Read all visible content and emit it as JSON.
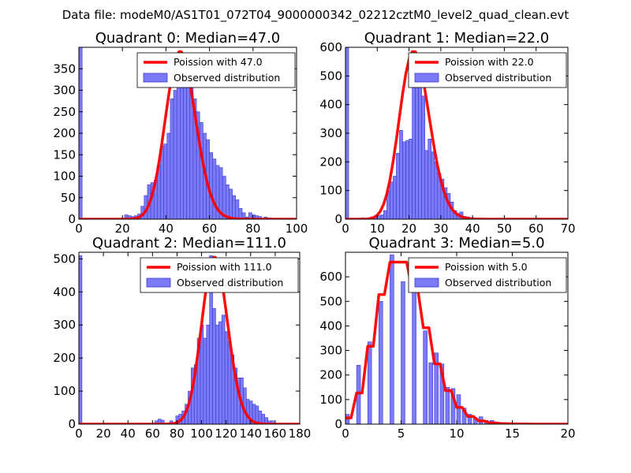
{
  "suptitle": "Data file: modeM0/AS1T01_072T04_9000000342_02212cztM0_level2_quad_clean.evt",
  "colors": {
    "bar_fill": "#7b7bf7",
    "bar_edge": "#3a3ad0",
    "line": "#ff0000",
    "axes": "#000000",
    "legend_edge": "#000000"
  },
  "chart_data": [
    {
      "type": "bar",
      "title": "Quadrant 0: Median=47.0",
      "xlim": [
        0,
        100
      ],
      "ylim": [
        0,
        400
      ],
      "xticks": [
        0,
        20,
        40,
        60,
        80,
        100
      ],
      "yticks": [
        0,
        50,
        100,
        150,
        200,
        250,
        300,
        350
      ],
      "legend": {
        "location": "upper right",
        "line_label": "Poission with 47.0",
        "bar_label": "Observed distribution"
      },
      "bin_width": 1.5,
      "bars": [
        [
          0,
          400
        ],
        [
          21,
          10
        ],
        [
          22.5,
          8
        ],
        [
          24,
          6
        ],
        [
          25.5,
          8
        ],
        [
          27,
          12
        ],
        [
          28.5,
          30
        ],
        [
          30,
          55
        ],
        [
          31.5,
          80
        ],
        [
          33,
          85
        ],
        [
          34.5,
          90
        ],
        [
          36,
          125
        ],
        [
          37.5,
          170
        ],
        [
          39,
          175
        ],
        [
          40.5,
          200
        ],
        [
          42,
          280
        ],
        [
          43.5,
          300
        ],
        [
          45,
          320
        ],
        [
          46.5,
          340
        ],
        [
          48,
          350
        ],
        [
          49.5,
          330
        ],
        [
          51,
          310
        ],
        [
          52.5,
          280
        ],
        [
          54,
          250
        ],
        [
          55.5,
          225
        ],
        [
          57,
          200
        ],
        [
          58.5,
          185
        ],
        [
          60,
          155
        ],
        [
          61.5,
          140
        ],
        [
          63,
          125
        ],
        [
          64.5,
          120
        ],
        [
          66,
          100
        ],
        [
          67.5,
          80
        ],
        [
          69,
          70
        ],
        [
          70.5,
          55
        ],
        [
          72,
          45
        ],
        [
          73.5,
          25
        ],
        [
          75,
          15
        ],
        [
          76.5,
          5
        ],
        [
          78,
          15
        ],
        [
          79.5,
          10
        ],
        [
          81,
          8
        ],
        [
          82.5,
          6
        ],
        [
          85,
          5
        ],
        [
          87,
          3
        ],
        [
          90,
          2
        ]
      ],
      "poisson_mean": 47.0,
      "poisson_peak": 390,
      "poisson_step": 1
    },
    {
      "type": "bar",
      "title": "Quadrant 1: Median=22.0",
      "xlim": [
        0,
        70
      ],
      "ylim": [
        0,
        600
      ],
      "xticks": [
        0,
        10,
        20,
        30,
        40,
        50,
        60,
        70
      ],
      "yticks": [
        0,
        100,
        200,
        300,
        400,
        500,
        600
      ],
      "legend": {
        "location": "upper right",
        "line_label": "Poission with 22.0",
        "bar_label": "Observed distribution"
      },
      "bin_width": 1,
      "bars": [
        [
          0,
          600
        ],
        [
          5,
          5
        ],
        [
          6,
          3
        ],
        [
          7,
          5
        ],
        [
          8,
          8
        ],
        [
          9,
          10
        ],
        [
          10,
          12
        ],
        [
          11,
          15
        ],
        [
          12,
          30
        ],
        [
          13,
          100
        ],
        [
          14,
          130
        ],
        [
          15,
          150
        ],
        [
          16,
          230
        ],
        [
          17,
          310
        ],
        [
          18,
          270
        ],
        [
          19,
          275
        ],
        [
          20,
          280
        ],
        [
          21,
          490
        ],
        [
          22,
          580
        ],
        [
          23,
          520
        ],
        [
          24,
          430
        ],
        [
          25,
          240
        ],
        [
          26,
          280
        ],
        [
          27,
          235
        ],
        [
          28,
          200
        ],
        [
          29,
          160
        ],
        [
          30,
          140
        ],
        [
          31,
          110
        ],
        [
          32,
          90
        ],
        [
          33,
          60
        ],
        [
          34,
          30
        ],
        [
          35,
          20
        ],
        [
          36,
          25
        ],
        [
          37,
          10
        ],
        [
          38,
          8
        ],
        [
          39,
          5
        ],
        [
          40,
          3
        ]
      ],
      "poisson_mean": 22.0,
      "poisson_peak": 585,
      "poisson_step": 1
    },
    {
      "type": "bar",
      "title": "Quadrant 2: Median=111.0",
      "xlim": [
        0,
        180
      ],
      "ylim": [
        0,
        520
      ],
      "xticks": [
        0,
        20,
        40,
        60,
        80,
        100,
        120,
        140,
        160,
        180
      ],
      "yticks": [
        0,
        100,
        200,
        300,
        400,
        500
      ],
      "legend": {
        "location": "upper right",
        "line_label": "Poission with 111.0",
        "bar_label": "Observed distribution"
      },
      "bin_width": 2.5,
      "bars": [
        [
          0,
          510
        ],
        [
          62,
          10
        ],
        [
          64.5,
          15
        ],
        [
          67,
          12
        ],
        [
          74,
          10
        ],
        [
          79,
          25
        ],
        [
          81.5,
          30
        ],
        [
          84,
          40
        ],
        [
          86.5,
          60
        ],
        [
          89,
          100
        ],
        [
          91.5,
          170
        ],
        [
          94,
          180
        ],
        [
          96.5,
          260
        ],
        [
          99,
          300
        ],
        [
          101.5,
          260
        ],
        [
          104,
          300
        ],
        [
          106.5,
          510
        ],
        [
          109,
          350
        ],
        [
          111.5,
          300
        ],
        [
          114,
          310
        ],
        [
          116.5,
          330
        ],
        [
          119,
          280
        ],
        [
          121.5,
          250
        ],
        [
          124,
          210
        ],
        [
          126.5,
          170
        ],
        [
          129,
          140
        ],
        [
          131.5,
          140
        ],
        [
          134,
          110
        ],
        [
          136.5,
          75
        ],
        [
          139,
          70
        ],
        [
          141.5,
          60
        ],
        [
          144,
          55
        ],
        [
          146.5,
          40
        ],
        [
          149,
          30
        ],
        [
          151.5,
          20
        ],
        [
          154,
          10
        ],
        [
          156.5,
          10
        ]
      ],
      "poisson_mean": 111.0,
      "poisson_peak": 505,
      "poisson_step": 1
    },
    {
      "type": "bar",
      "title": "Quadrant 3: Median=5.0",
      "xlim": [
        0,
        20
      ],
      "ylim": [
        0,
        700
      ],
      "xticks": [
        0,
        5,
        10,
        15,
        20
      ],
      "yticks": [
        0,
        100,
        200,
        300,
        400,
        500,
        600
      ],
      "legend": {
        "location": "upper right",
        "line_label": "Poission with 5.0",
        "bar_label": "Observed distribution"
      },
      "bin_width": 0.35,
      "bars": [
        [
          0,
          40
        ],
        [
          1,
          240
        ],
        [
          2,
          335
        ],
        [
          3,
          500
        ],
        [
          4,
          690
        ],
        [
          5,
          580
        ],
        [
          6,
          630
        ],
        [
          7,
          380
        ],
        [
          7.5,
          250
        ],
        [
          8,
          290
        ],
        [
          8.5,
          245
        ],
        [
          9,
          150
        ],
        [
          9.5,
          145
        ],
        [
          10,
          120
        ],
        [
          10.5,
          65
        ],
        [
          11,
          40
        ],
        [
          11.5,
          25
        ],
        [
          12,
          30
        ],
        [
          12.5,
          15
        ],
        [
          13,
          15
        ],
        [
          13.5,
          5
        ],
        [
          14,
          2
        ]
      ],
      "poisson_mean": 5.0,
      "poisson_peak": 660,
      "poisson_step": 0.5
    }
  ]
}
